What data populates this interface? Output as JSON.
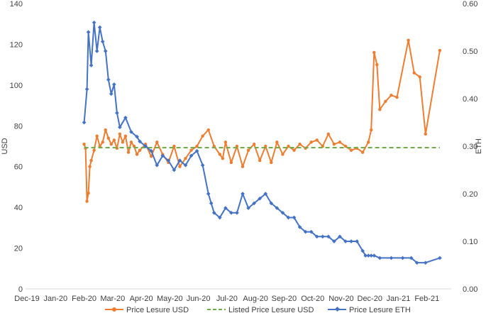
{
  "chart_data": {
    "type": "line",
    "ylabel_left": "USD",
    "ylabel_right": "ETH",
    "y_left_ticks": [
      "0",
      "20",
      "40",
      "60",
      "80",
      "100",
      "120",
      "140"
    ],
    "y_right_ticks": [
      "0.00",
      "0.10",
      "0.20",
      "0.30",
      "0.40",
      "0.50",
      "0.60"
    ],
    "x_ticks": [
      "Dec-19",
      "Jan-20",
      "Feb-20",
      "Mar-20",
      "Apr-20",
      "May-20",
      "Jun-20",
      "Jul-20",
      "Aug-20",
      "Sep-20",
      "Oct-20",
      "Nov-20",
      "Dec-20",
      "Jan-21",
      "Feb-21"
    ],
    "ylim_left": [
      0,
      140
    ],
    "ylim_right": [
      0,
      0.6
    ],
    "xlim_months": [
      0,
      14.9
    ],
    "legend_position": "bottom",
    "grid": false,
    "series": [
      {
        "name": "Price Lesure USD",
        "axis": "left",
        "color": "#ED7D31",
        "x": [
          2.05,
          2.1,
          2.15,
          2.2,
          2.25,
          2.3,
          2.4,
          2.5,
          2.6,
          2.7,
          2.8,
          2.9,
          3.0,
          3.1,
          3.2,
          3.3,
          3.4,
          3.5,
          3.6,
          3.7,
          3.8,
          3.9,
          4.0,
          4.2,
          4.4,
          4.6,
          4.8,
          5.0,
          5.2,
          5.4,
          5.6,
          5.8,
          6.0,
          6.2,
          6.4,
          6.6,
          6.8,
          6.9,
          7.0,
          7.2,
          7.4,
          7.6,
          7.8,
          8.0,
          8.2,
          8.4,
          8.6,
          8.8,
          9.0,
          9.2,
          9.4,
          9.6,
          9.8,
          10.0,
          10.2,
          10.4,
          10.6,
          10.8,
          11.0,
          11.2,
          11.4,
          11.6,
          11.8,
          12.0,
          12.1,
          12.2,
          12.3,
          12.4,
          12.6,
          12.8,
          13.0,
          13.4,
          13.6,
          13.8,
          14.0,
          14.5
        ],
        "y": [
          71,
          69,
          43,
          47,
          60,
          63,
          68,
          75,
          70,
          72,
          78,
          74,
          71,
          73,
          69,
          76,
          72,
          75,
          67,
          72,
          70,
          66,
          68,
          71,
          65,
          72,
          66,
          62,
          70,
          60,
          64,
          68,
          70,
          75,
          78,
          70,
          66,
          64,
          72,
          62,
          70,
          60,
          68,
          71,
          63,
          70,
          62,
          72,
          66,
          70,
          68,
          71,
          69,
          72,
          73,
          70,
          76,
          71,
          72,
          70,
          68,
          69,
          67,
          72,
          78,
          116,
          110,
          88,
          92,
          95,
          94,
          122,
          106,
          104,
          76,
          117
        ]
      },
      {
        "name": "Listed Price Lesure USD",
        "axis": "left",
        "color": "#70AD47",
        "dash": true,
        "x": [
          2.05,
          14.5
        ],
        "y": [
          69.3,
          69.3
        ]
      },
      {
        "name": "Price Lesure ETH",
        "axis": "right",
        "color": "#4472C4",
        "x": [
          2.05,
          2.15,
          2.2,
          2.3,
          2.4,
          2.5,
          2.6,
          2.7,
          2.8,
          2.9,
          3.0,
          3.1,
          3.2,
          3.3,
          3.5,
          3.7,
          3.9,
          4.0,
          4.2,
          4.4,
          4.6,
          4.8,
          5.0,
          5.2,
          5.4,
          5.6,
          5.8,
          6.0,
          6.2,
          6.4,
          6.5,
          6.6,
          6.8,
          7.0,
          7.2,
          7.4,
          7.6,
          7.8,
          8.0,
          8.2,
          8.4,
          8.6,
          8.8,
          9.0,
          9.2,
          9.4,
          9.6,
          9.8,
          10.0,
          10.2,
          10.4,
          10.6,
          10.8,
          11.0,
          11.2,
          11.4,
          11.6,
          11.8,
          11.9,
          12.0,
          12.1,
          12.2,
          12.4,
          12.8,
          13.2,
          13.5,
          13.7,
          14.0,
          14.5
        ],
        "y": [
          0.35,
          0.42,
          0.54,
          0.47,
          0.56,
          0.5,
          0.55,
          0.52,
          0.5,
          0.44,
          0.41,
          0.43,
          0.37,
          0.34,
          0.36,
          0.33,
          0.32,
          0.31,
          0.3,
          0.29,
          0.26,
          0.28,
          0.27,
          0.25,
          0.27,
          0.26,
          0.28,
          0.29,
          0.26,
          0.2,
          0.18,
          0.16,
          0.15,
          0.17,
          0.16,
          0.16,
          0.2,
          0.17,
          0.18,
          0.19,
          0.2,
          0.18,
          0.17,
          0.16,
          0.15,
          0.15,
          0.13,
          0.12,
          0.12,
          0.11,
          0.11,
          0.11,
          0.1,
          0.11,
          0.1,
          0.1,
          0.1,
          0.08,
          0.07,
          0.07,
          0.07,
          0.07,
          0.065,
          0.065,
          0.065,
          0.065,
          0.055,
          0.055,
          0.065
        ]
      }
    ]
  }
}
